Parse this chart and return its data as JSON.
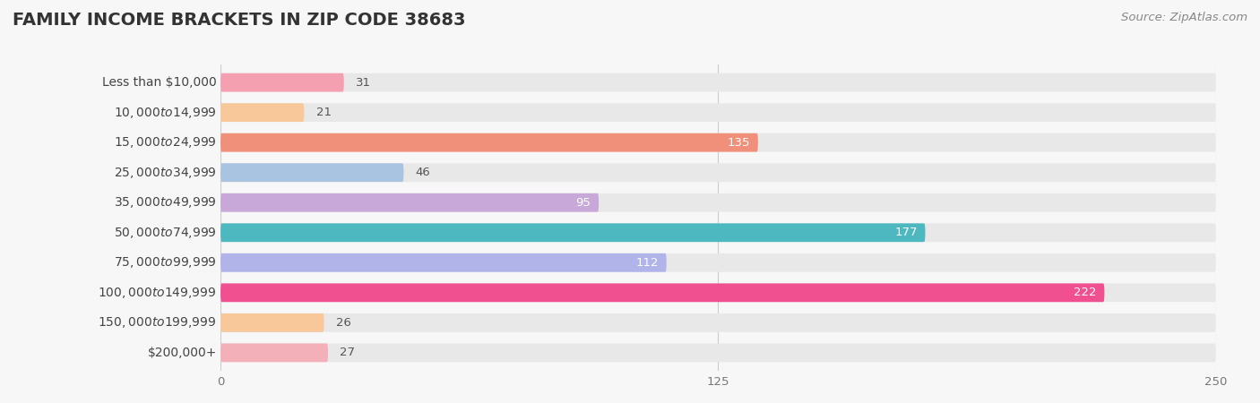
{
  "title": "FAMILY INCOME BRACKETS IN ZIP CODE 38683",
  "source": "Source: ZipAtlas.com",
  "categories": [
    "Less than $10,000",
    "$10,000 to $14,999",
    "$15,000 to $24,999",
    "$25,000 to $34,999",
    "$35,000 to $49,999",
    "$50,000 to $74,999",
    "$75,000 to $99,999",
    "$100,000 to $149,999",
    "$150,000 to $199,999",
    "$200,000+"
  ],
  "values": [
    31,
    21,
    135,
    46,
    95,
    177,
    112,
    222,
    26,
    27
  ],
  "bar_colors": [
    "#f4a0b0",
    "#f8c89a",
    "#f0907a",
    "#a8c4e0",
    "#c8a8d8",
    "#4db8c0",
    "#b0b4e8",
    "#f05090",
    "#f8c89a",
    "#f4b0b8"
  ],
  "background_color": "#f7f7f7",
  "bar_background": "#e8e8e8",
  "xlim": [
    0,
    250
  ],
  "xticks": [
    0,
    125,
    250
  ],
  "title_fontsize": 14,
  "label_fontsize": 10,
  "value_fontsize": 9.5,
  "source_fontsize": 9.5,
  "value_white_threshold": 55
}
